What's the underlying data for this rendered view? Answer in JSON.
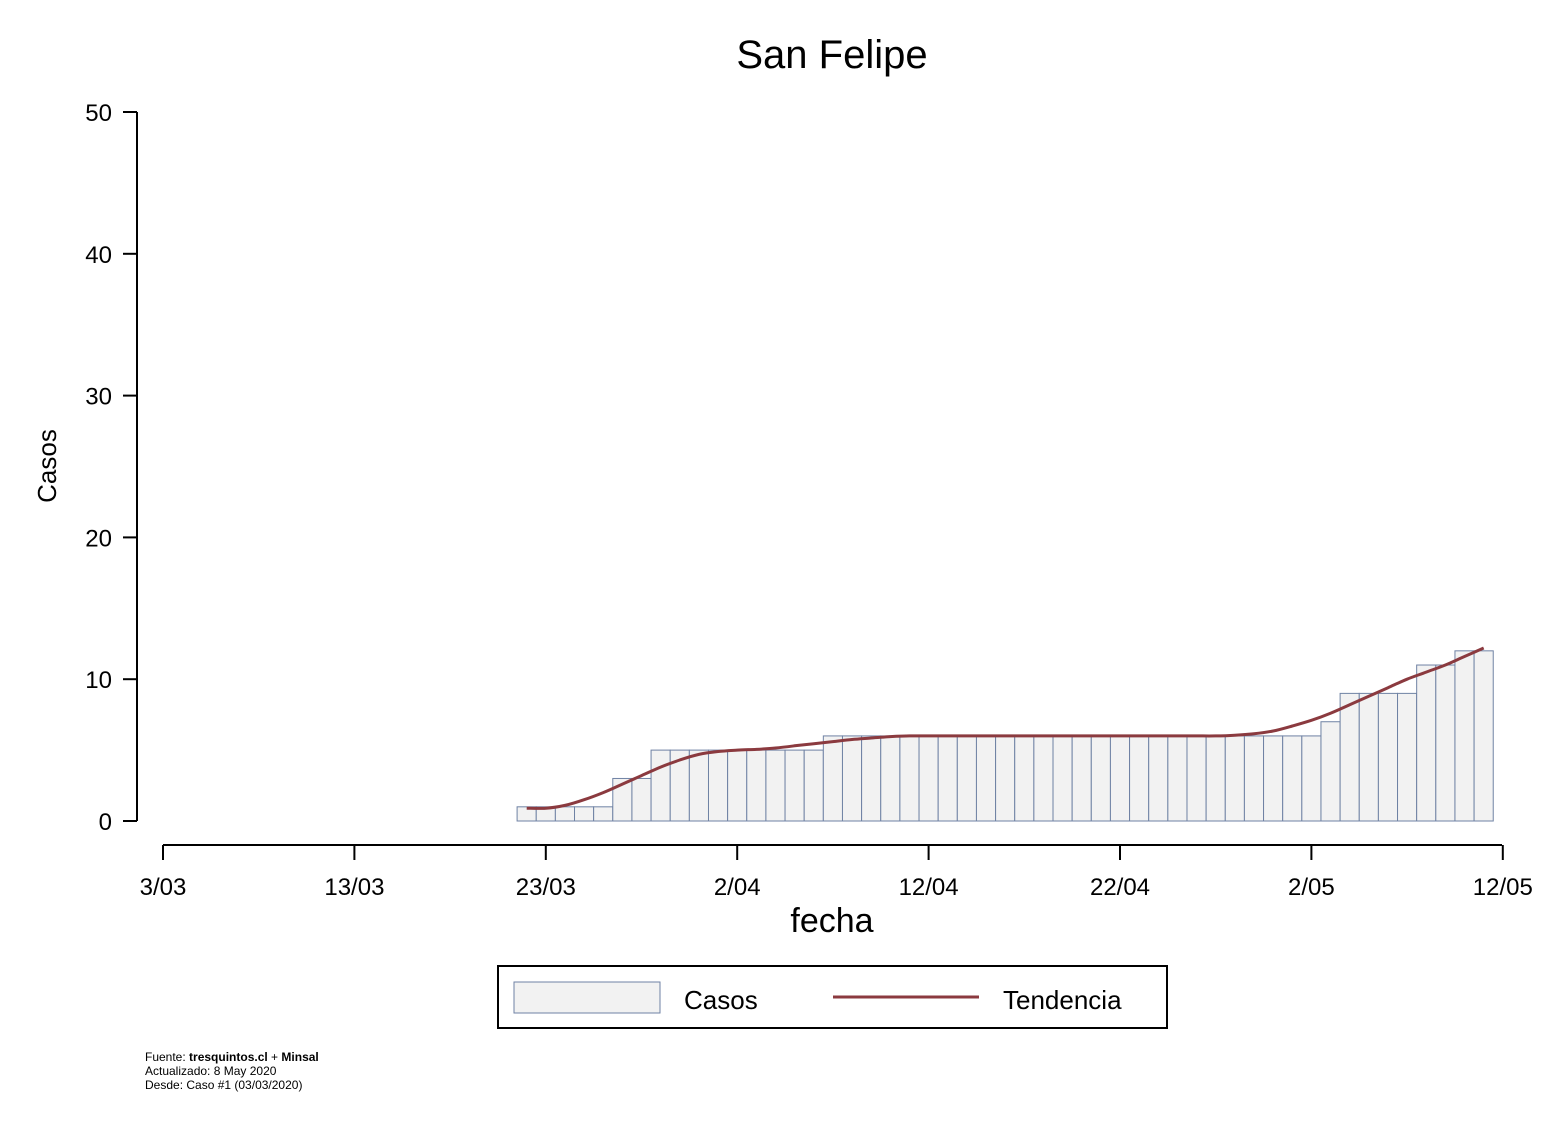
{
  "chart_data": {
    "type": "bar",
    "title": "San Felipe",
    "xlabel": "fecha",
    "ylabel": "Casos",
    "ylim": [
      0,
      50
    ],
    "yticks": [
      0,
      10,
      20,
      30,
      40,
      50
    ],
    "x_ticks": [
      {
        "day": 0,
        "label": "3/03"
      },
      {
        "day": 10,
        "label": "13/03"
      },
      {
        "day": 20,
        "label": "23/03"
      },
      {
        "day": 30,
        "label": "2/04"
      },
      {
        "day": 40,
        "label": "12/04"
      },
      {
        "day": 50,
        "label": "22/04"
      },
      {
        "day": 60,
        "label": "2/05"
      },
      {
        "day": 70,
        "label": "12/05"
      }
    ],
    "series": [
      {
        "name": "Casos",
        "kind": "bar",
        "start_date": "2020-03-22",
        "values": [
          1,
          1,
          1,
          1,
          1,
          3,
          3,
          5,
          5,
          5,
          5,
          5,
          5,
          5,
          5,
          5,
          6,
          6,
          6,
          6,
          6,
          6,
          6,
          6,
          6,
          6,
          6,
          6,
          6,
          6,
          6,
          6,
          6,
          6,
          6,
          6,
          6,
          6,
          6,
          6,
          6,
          6,
          7,
          9,
          9,
          9,
          9,
          11,
          11,
          12,
          12
        ]
      },
      {
        "name": "Tendencia",
        "kind": "line",
        "start_date": "2020-03-22",
        "values": [
          0.9,
          0.9,
          1.1,
          1.5,
          2.0,
          2.6,
          3.2,
          3.8,
          4.3,
          4.7,
          4.9,
          5.0,
          5.05,
          5.15,
          5.3,
          5.45,
          5.6,
          5.75,
          5.85,
          5.95,
          6.0,
          6.0,
          6.0,
          6.0,
          6.0,
          6.0,
          6.0,
          6.0,
          6.0,
          6.0,
          6.0,
          6.0,
          6.0,
          6.0,
          6.0,
          6.0,
          6.0,
          6.05,
          6.15,
          6.35,
          6.7,
          7.1,
          7.6,
          8.2,
          8.8,
          9.4,
          10.0,
          10.5,
          11.0,
          11.6,
          12.2
        ]
      }
    ],
    "legend": {
      "position": "bottom",
      "items": [
        "Casos",
        "Tendencia"
      ]
    },
    "colors": {
      "bar_fill": "#f2f2f2",
      "bar_stroke": "#6f82a4",
      "line": "#8b3a3f",
      "axis": "#000000"
    },
    "grid": false
  },
  "footnote": {
    "fuente_prefix": "Fuente: ",
    "fuente_site": "tresquintos.cl",
    "fuente_plus": " + ",
    "fuente_org": "Minsal",
    "actualizado": "Actualizado: 8 May 2020",
    "desde": "Desde: Caso #1  (03/03/2020)"
  }
}
